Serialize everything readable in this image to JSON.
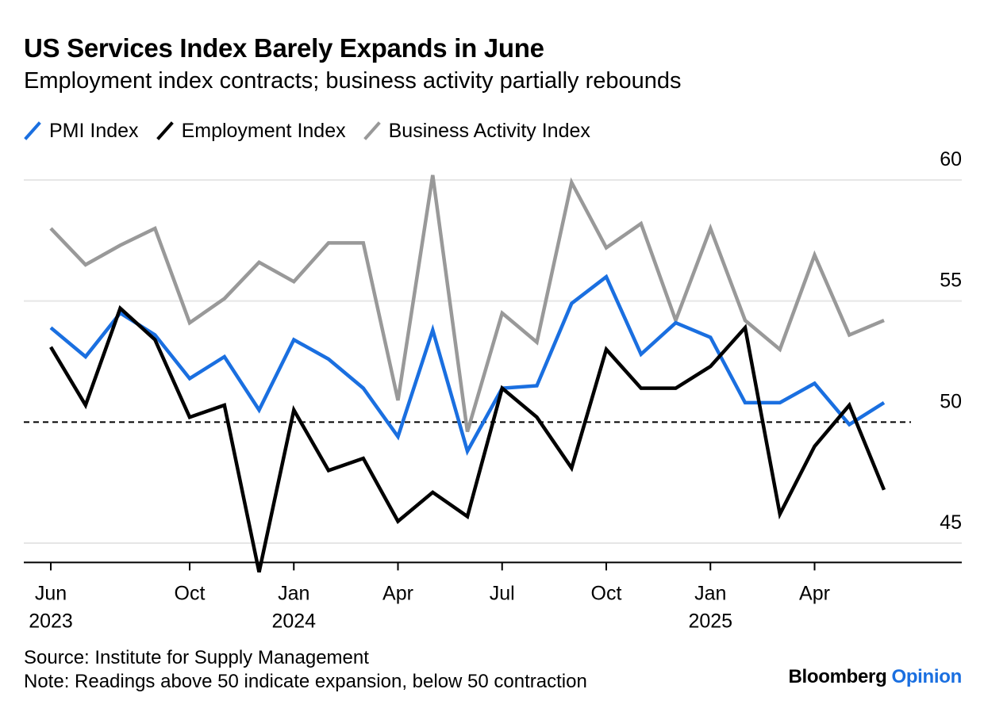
{
  "title": "US Services Index Barely Expands in June",
  "subtitle": "Employment index contracts; business activity partially rebounds",
  "footer": {
    "source": "Source: Institute for Supply Management",
    "note": "Note: Readings above 50 indicate expansion, below 50 contraction"
  },
  "brand": {
    "name": "Bloomberg",
    "suffix": "Opinion",
    "accent": "#1a6fe0"
  },
  "chart_data": {
    "type": "line",
    "title": "US Services Index Barely Expands in June",
    "subtitle": "Employment index contracts; business activity partially rebounds",
    "x": [
      "2023-06",
      "2023-07",
      "2023-08",
      "2023-09",
      "2023-10",
      "2023-11",
      "2023-12",
      "2024-01",
      "2024-02",
      "2024-03",
      "2024-04",
      "2024-05",
      "2024-06",
      "2024-07",
      "2024-08",
      "2024-09",
      "2024-10",
      "2024-11",
      "2024-12",
      "2025-01",
      "2025-02",
      "2025-03",
      "2025-04",
      "2025-05",
      "2025-06"
    ],
    "x_ticks": [
      {
        "x": "2023-06",
        "label": "Jun",
        "year": "2023"
      },
      {
        "x": "2023-10",
        "label": "Oct",
        "year": ""
      },
      {
        "x": "2024-01",
        "label": "Jan",
        "year": "2024"
      },
      {
        "x": "2024-04",
        "label": "Apr",
        "year": ""
      },
      {
        "x": "2024-07",
        "label": "Jul",
        "year": ""
      },
      {
        "x": "2024-10",
        "label": "Oct",
        "year": ""
      },
      {
        "x": "2025-01",
        "label": "Jan",
        "year": "2025"
      },
      {
        "x": "2025-04",
        "label": "Apr",
        "year": ""
      }
    ],
    "ylim": [
      44.2,
      60
    ],
    "y_ticks": [
      45,
      50,
      55,
      60
    ],
    "reference_line": 50,
    "axis_side": "right",
    "grid": true,
    "legend_position": "top-left",
    "series": [
      {
        "name": "PMI Index",
        "color": "#1a6fe0",
        "values": [
          53.9,
          52.7,
          54.5,
          53.6,
          51.8,
          52.7,
          50.5,
          53.4,
          52.6,
          51.4,
          49.4,
          53.8,
          48.8,
          51.4,
          51.5,
          54.9,
          56.0,
          52.8,
          54.1,
          53.5,
          50.8,
          50.8,
          51.6,
          49.9,
          50.8
        ]
      },
      {
        "name": "Employment Index",
        "color": "#000000",
        "values": [
          53.1,
          50.7,
          54.7,
          53.4,
          50.2,
          50.7,
          43.8,
          50.5,
          48.0,
          48.5,
          45.9,
          47.1,
          46.1,
          51.4,
          50.2,
          48.1,
          53.0,
          51.4,
          51.4,
          52.3,
          53.9,
          46.2,
          49.0,
          50.7,
          47.2
        ]
      },
      {
        "name": "Business Activity Index",
        "color": "#999999",
        "values": [
          58.0,
          56.5,
          57.3,
          58.0,
          54.1,
          55.1,
          56.6,
          55.8,
          57.4,
          57.4,
          50.9,
          60.2,
          49.6,
          54.5,
          53.3,
          59.9,
          57.2,
          58.2,
          54.2,
          58.0,
          54.2,
          53.0,
          56.9,
          53.6,
          54.2
        ]
      }
    ]
  }
}
